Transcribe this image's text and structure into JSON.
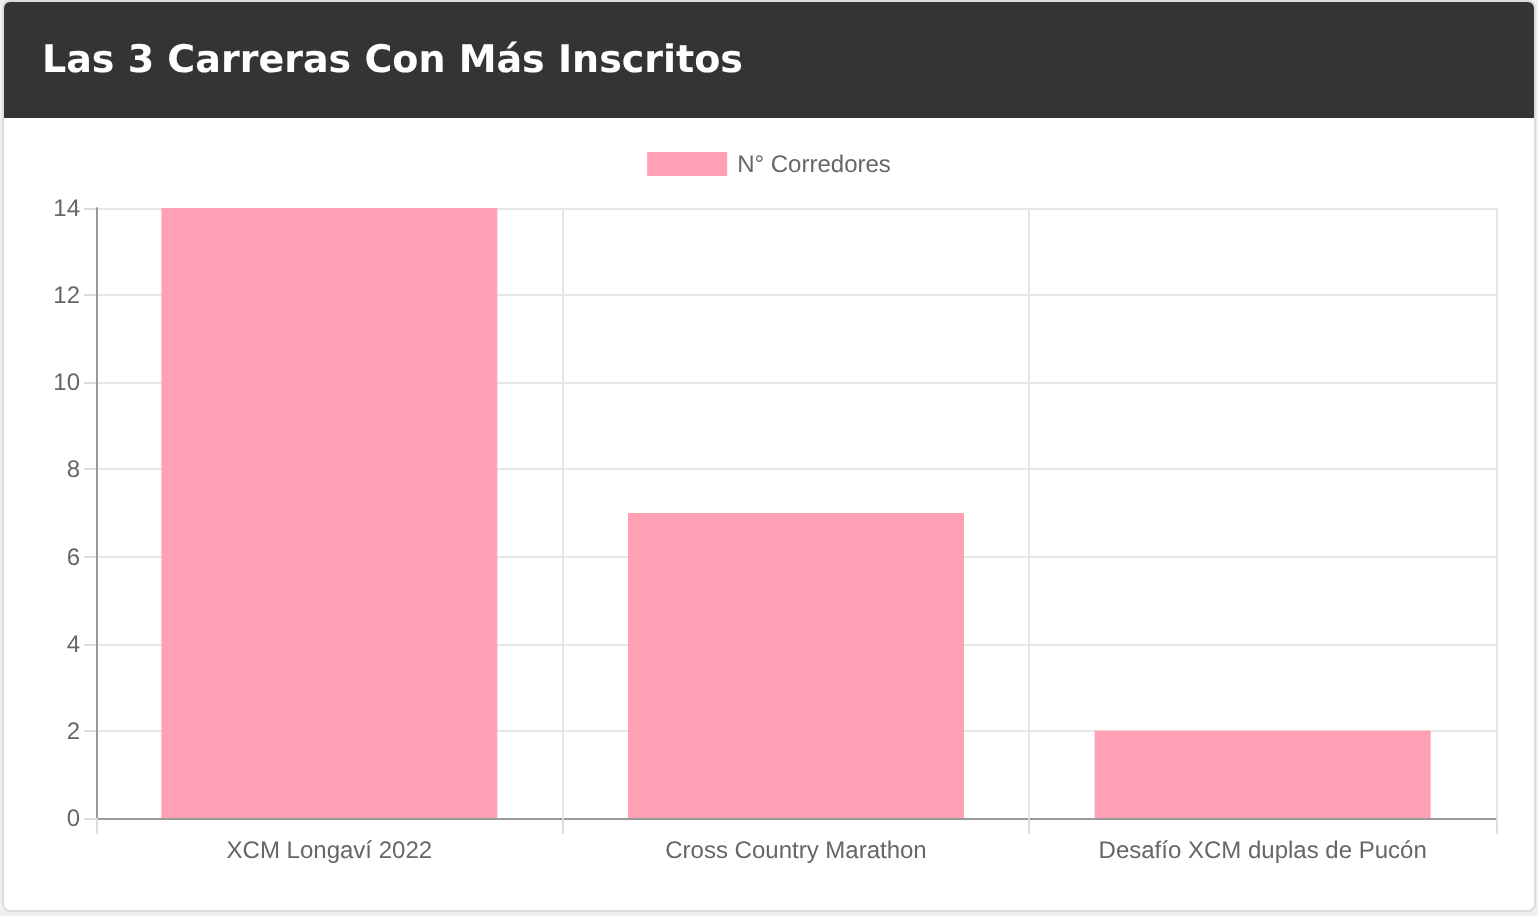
{
  "chart_data": {
    "type": "bar",
    "title": "Las 3 Carreras Con Más Inscritos",
    "categories": [
      "XCM Longaví 2022",
      "Cross Country Marathon",
      "Desafío XCM duplas de Pucón"
    ],
    "series": [
      {
        "name": "N° Corredores",
        "color": "#ffa0b4",
        "values": [
          14,
          7,
          2
        ]
      }
    ],
    "ylim": [
      0,
      14
    ],
    "yticks": [
      0,
      2,
      4,
      6,
      8,
      10,
      12,
      14
    ],
    "grid": true,
    "legend": "top"
  }
}
